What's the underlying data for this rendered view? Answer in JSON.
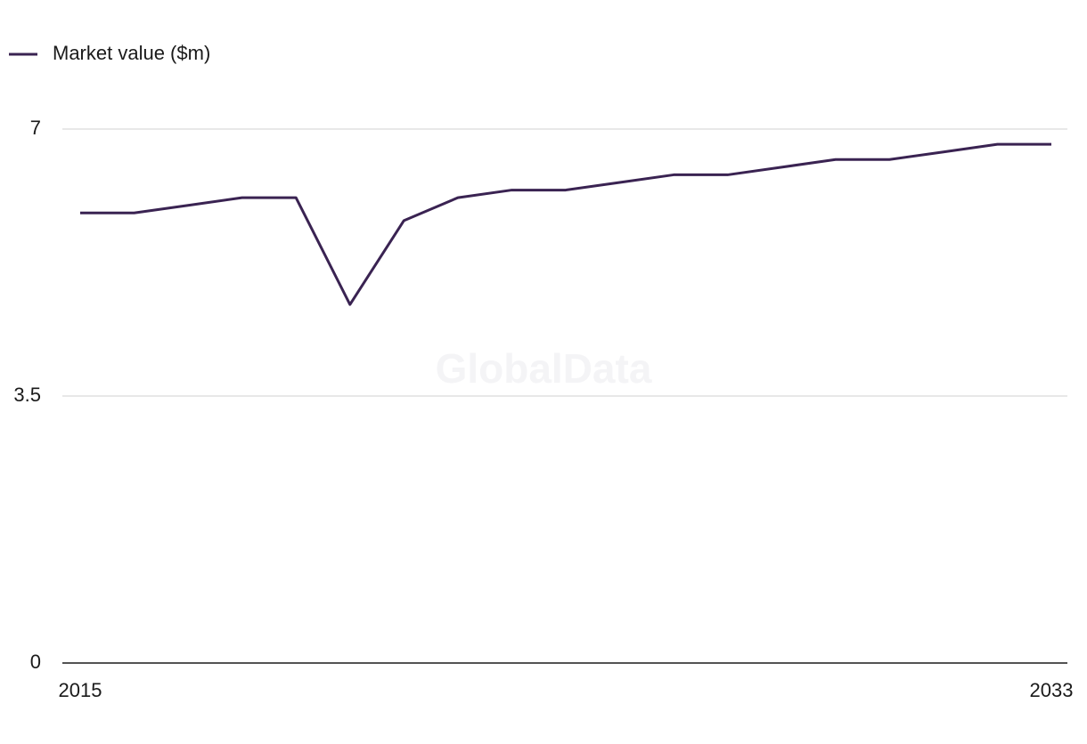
{
  "chart_data": {
    "type": "line",
    "watermark": "GlobalData",
    "x": [
      2015,
      2016,
      2017,
      2018,
      2019,
      2020,
      2021,
      2022,
      2023,
      2024,
      2025,
      2026,
      2027,
      2028,
      2029,
      2030,
      2031,
      2032,
      2033
    ],
    "series": [
      {
        "name": "Market value ($m)",
        "color": "#3a2352",
        "values": [
          5.9,
          5.9,
          6.0,
          6.1,
          6.1,
          4.7,
          5.8,
          6.1,
          6.2,
          6.2,
          6.3,
          6.4,
          6.4,
          6.5,
          6.6,
          6.6,
          6.7,
          6.8,
          6.8
        ]
      }
    ],
    "xlim": [
      2015,
      2033
    ],
    "xticks": [
      2015,
      2033
    ],
    "ylim": [
      0,
      7
    ],
    "yticks": [
      0,
      3.5,
      7
    ],
    "grid": true,
    "legend": "top-left"
  }
}
